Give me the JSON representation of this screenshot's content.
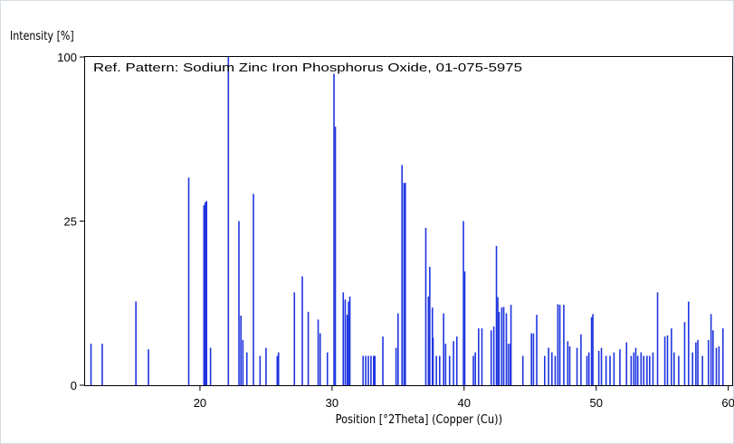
{
  "chart_data": {
    "type": "bar",
    "ylabel": "Intensity [%]",
    "xlabel": "Position [°2Theta] (Copper (Cu))",
    "annotation": "Ref. Pattern: Sodium Zinc Iron Phosphorus Oxide, 01-075-5975",
    "xlim": [
      11.3,
      60.3
    ],
    "ylim": [
      0,
      100
    ],
    "y_scale": "sqrt",
    "x_ticks": [
      20,
      30,
      40,
      50,
      60
    ],
    "y_ticks": [
      0,
      25,
      100
    ],
    "grid": false,
    "bar_color": "#1f35e0",
    "peaks": [
      [
        11.75,
        1.6
      ],
      [
        12.6,
        1.6
      ],
      [
        15.15,
        6.5
      ],
      [
        16.1,
        1.2
      ],
      [
        19.15,
        40
      ],
      [
        20.3,
        30
      ],
      [
        20.4,
        31
      ],
      [
        20.5,
        31.5
      ],
      [
        20.8,
        1.3
      ],
      [
        22.15,
        100
      ],
      [
        22.95,
        25
      ],
      [
        23.1,
        4.5
      ],
      [
        23.25,
        1.9
      ],
      [
        23.55,
        1.0
      ],
      [
        24.05,
        34
      ],
      [
        24.55,
        0.8
      ],
      [
        25.0,
        1.3
      ],
      [
        25.85,
        0.8
      ],
      [
        25.95,
        1.0
      ],
      [
        27.15,
        8
      ],
      [
        27.75,
        11
      ],
      [
        28.2,
        5
      ],
      [
        28.95,
        4.0
      ],
      [
        29.1,
        2.5
      ],
      [
        29.65,
        1.0
      ],
      [
        30.15,
        90
      ],
      [
        30.25,
        62
      ],
      [
        30.85,
        8
      ],
      [
        31.0,
        6.8
      ],
      [
        31.15,
        4.6
      ],
      [
        31.25,
        6.5
      ],
      [
        31.35,
        7.3
      ],
      [
        32.35,
        0.8
      ],
      [
        32.55,
        0.8
      ],
      [
        32.75,
        0.8
      ],
      [
        32.95,
        0.8
      ],
      [
        33.15,
        0.8
      ],
      [
        33.25,
        0.8
      ],
      [
        33.85,
        2.2
      ],
      [
        34.85,
        1.3
      ],
      [
        35.0,
        4.8
      ],
      [
        35.3,
        45
      ],
      [
        35.45,
        38
      ],
      [
        35.55,
        38
      ],
      [
        37.1,
        23
      ],
      [
        37.3,
        7.3
      ],
      [
        37.4,
        13
      ],
      [
        37.6,
        5.6
      ],
      [
        37.65,
        2.1
      ],
      [
        37.9,
        0.8
      ],
      [
        38.15,
        0.8
      ],
      [
        38.45,
        4.8
      ],
      [
        38.6,
        1.6
      ],
      [
        38.9,
        0.8
      ],
      [
        39.2,
        1.8
      ],
      [
        39.45,
        2.2
      ],
      [
        39.95,
        25
      ],
      [
        40.05,
        12
      ],
      [
        40.7,
        0.8
      ],
      [
        40.85,
        1.0
      ],
      [
        41.1,
        3.0
      ],
      [
        41.35,
        3.0
      ],
      [
        42.05,
        2.8
      ],
      [
        42.25,
        3.2
      ],
      [
        42.45,
        18
      ],
      [
        42.55,
        7.2
      ],
      [
        42.65,
        5.0
      ],
      [
        42.85,
        5.6
      ],
      [
        43.0,
        5.7
      ],
      [
        43.2,
        4.8
      ],
      [
        43.35,
        1.6
      ],
      [
        43.5,
        1.6
      ],
      [
        43.55,
        6.0
      ],
      [
        44.45,
        0.8
      ],
      [
        45.1,
        2.5
      ],
      [
        45.25,
        2.5
      ],
      [
        45.5,
        4.6
      ],
      [
        46.1,
        0.8
      ],
      [
        46.4,
        1.3
      ],
      [
        46.65,
        1.0
      ],
      [
        46.9,
        0.8
      ],
      [
        47.1,
        6.1
      ],
      [
        47.25,
        6.0
      ],
      [
        47.55,
        6.0
      ],
      [
        47.85,
        1.8
      ],
      [
        48.0,
        1.4
      ],
      [
        48.55,
        1.3
      ],
      [
        48.85,
        2.4
      ],
      [
        49.3,
        0.8
      ],
      [
        49.45,
        1.0
      ],
      [
        49.65,
        4.3
      ],
      [
        49.75,
        4.7
      ],
      [
        50.2,
        1.1
      ],
      [
        50.4,
        1.3
      ],
      [
        50.75,
        0.8
      ],
      [
        51.05,
        0.8
      ],
      [
        51.35,
        1.0
      ],
      [
        51.8,
        1.2
      ],
      [
        52.3,
        1.7
      ],
      [
        52.65,
        0.8
      ],
      [
        52.85,
        1.0
      ],
      [
        53.0,
        1.3
      ],
      [
        53.15,
        0.8
      ],
      [
        53.4,
        1.0
      ],
      [
        53.6,
        0.8
      ],
      [
        53.85,
        0.8
      ],
      [
        54.05,
        0.8
      ],
      [
        54.3,
        1.0
      ],
      [
        54.65,
        8.0
      ],
      [
        55.2,
        2.2
      ],
      [
        55.4,
        2.3
      ],
      [
        55.7,
        3.0
      ],
      [
        55.9,
        1.0
      ],
      [
        56.25,
        0.8
      ],
      [
        56.7,
        3.7
      ],
      [
        57.0,
        6.5
      ],
      [
        57.3,
        1.0
      ],
      [
        57.55,
        1.7
      ],
      [
        57.7,
        1.9
      ],
      [
        58.05,
        0.8
      ],
      [
        58.5,
        1.9
      ],
      [
        58.7,
        4.7
      ],
      [
        58.85,
        2.8
      ],
      [
        59.1,
        1.3
      ],
      [
        59.3,
        1.4
      ],
      [
        59.6,
        3.0
      ]
    ]
  }
}
